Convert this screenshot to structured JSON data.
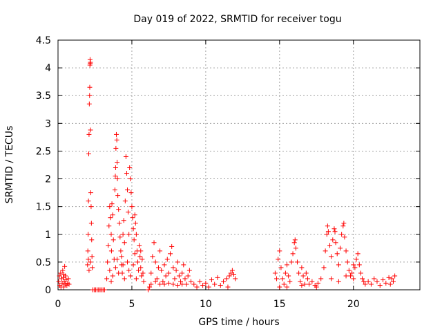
{
  "chart_data": {
    "type": "scatter",
    "title": "Day 019 of 2022, SRMTID for receiver togu",
    "xlabel": "GPS time / hours",
    "ylabel": "SRMTID / TECUs",
    "xlim": [
      0,
      24.5
    ],
    "ylim": [
      0,
      4.5
    ],
    "xticks": [
      0,
      5,
      10,
      15,
      20
    ],
    "yticks": [
      0,
      0.5,
      1,
      1.5,
      2,
      2.5,
      3,
      3.5,
      4,
      4.5
    ],
    "ytick_labels": [
      "0",
      "0.5",
      "1",
      "1.5",
      "2",
      "2.5",
      "3",
      "3.5",
      "4",
      "4.5"
    ],
    "grid": true,
    "marker": "+",
    "color": "#ff0000",
    "series": [
      {
        "name": "SRMTID",
        "points": [
          [
            0.05,
            0.15
          ],
          [
            0.1,
            0.25
          ],
          [
            0.12,
            0.08
          ],
          [
            0.18,
            0.3
          ],
          [
            0.2,
            0.05
          ],
          [
            0.25,
            0.2
          ],
          [
            0.28,
            0.12
          ],
          [
            0.32,
            0.35
          ],
          [
            0.35,
            0.22
          ],
          [
            0.38,
            0.05
          ],
          [
            0.4,
            0.28
          ],
          [
            0.42,
            0.15
          ],
          [
            0.45,
            0.42
          ],
          [
            0.48,
            0.1
          ],
          [
            0.5,
            0.25
          ],
          [
            0.55,
            0.18
          ],
          [
            0.6,
            0.08
          ],
          [
            0.65,
            0.12
          ],
          [
            0.7,
            0.2
          ],
          [
            0.75,
            0.1
          ],
          [
            2.0,
            0.45
          ],
          [
            2.02,
            0.7
          ],
          [
            2.04,
            1.0
          ],
          [
            2.06,
            1.6
          ],
          [
            2.08,
            2.45
          ],
          [
            2.1,
            2.8
          ],
          [
            2.12,
            3.35
          ],
          [
            2.14,
            3.5
          ],
          [
            2.15,
            3.65
          ],
          [
            2.16,
            4.05
          ],
          [
            2.17,
            4.15
          ],
          [
            2.18,
            4.08
          ],
          [
            2.19,
            4.1
          ],
          [
            2.2,
            2.88
          ],
          [
            2.22,
            1.75
          ],
          [
            2.24,
            1.5
          ],
          [
            2.26,
            1.2
          ],
          [
            2.28,
            0.9
          ],
          [
            2.3,
            0.6
          ],
          [
            2.32,
            0.4
          ],
          [
            2.05,
            0.55
          ],
          [
            2.1,
            0.35
          ],
          [
            2.2,
            0.5
          ],
          [
            2.35,
            0.0
          ],
          [
            2.45,
            0.0
          ],
          [
            2.55,
            0.0
          ],
          [
            2.65,
            0.0
          ],
          [
            2.75,
            0.0
          ],
          [
            2.85,
            0.0
          ],
          [
            2.95,
            0.0
          ],
          [
            3.05,
            0.0
          ],
          [
            3.15,
            0.0
          ],
          [
            3.3,
            0.2
          ],
          [
            3.35,
            0.5
          ],
          [
            3.4,
            0.8
          ],
          [
            3.45,
            1.15
          ],
          [
            3.5,
            1.5
          ],
          [
            3.55,
            1.3
          ],
          [
            3.6,
            1.0
          ],
          [
            3.62,
            0.7
          ],
          [
            3.65,
            1.55
          ],
          [
            3.7,
            1.35
          ],
          [
            3.75,
            0.9
          ],
          [
            3.8,
            0.55
          ],
          [
            3.85,
            1.8
          ],
          [
            3.88,
            2.05
          ],
          [
            3.9,
            2.2
          ],
          [
            3.92,
            2.55
          ],
          [
            3.95,
            2.8
          ],
          [
            3.98,
            2.7
          ],
          [
            4.0,
            2.3
          ],
          [
            4.02,
            2.0
          ],
          [
            4.05,
            1.7
          ],
          [
            4.1,
            1.45
          ],
          [
            4.15,
            1.2
          ],
          [
            4.2,
            0.95
          ],
          [
            4.25,
            0.7
          ],
          [
            4.3,
            0.45
          ],
          [
            4.35,
            0.3
          ],
          [
            4.4,
            1.0
          ],
          [
            4.45,
            1.25
          ],
          [
            4.5,
            0.85
          ],
          [
            4.55,
            1.6
          ],
          [
            4.6,
            2.4
          ],
          [
            4.65,
            2.1
          ],
          [
            4.7,
            1.8
          ],
          [
            4.75,
            1.4
          ],
          [
            4.8,
            1.0
          ],
          [
            4.85,
            2.2
          ],
          [
            4.9,
            2.0
          ],
          [
            4.95,
            1.75
          ],
          [
            5.0,
            1.5
          ],
          [
            5.05,
            1.3
          ],
          [
            5.1,
            1.1
          ],
          [
            5.15,
            0.9
          ],
          [
            5.2,
            1.35
          ],
          [
            5.25,
            1.2
          ],
          [
            5.3,
            1.0
          ],
          [
            5.35,
            0.7
          ],
          [
            5.4,
            0.5
          ],
          [
            5.45,
            0.35
          ],
          [
            5.5,
            0.8
          ],
          [
            5.55,
            0.6
          ],
          [
            5.6,
            0.4
          ],
          [
            5.65,
            0.25
          ],
          [
            5.7,
            0.55
          ],
          [
            5.75,
            0.3
          ],
          [
            5.8,
            0.15
          ],
          [
            3.5,
            0.35
          ],
          [
            3.7,
            0.25
          ],
          [
            3.9,
            0.4
          ],
          [
            4.1,
            0.3
          ],
          [
            4.3,
            0.6
          ],
          [
            4.5,
            0.2
          ],
          [
            4.7,
            0.5
          ],
          [
            4.9,
            0.25
          ],
          [
            5.1,
            0.45
          ],
          [
            5.3,
            0.2
          ],
          [
            3.6,
            0.15
          ],
          [
            4.0,
            0.55
          ],
          [
            4.4,
            0.45
          ],
          [
            4.8,
            0.35
          ],
          [
            5.2,
            0.65
          ],
          [
            5.6,
            0.7
          ],
          [
            6.1,
            0.0
          ],
          [
            6.2,
            0.05
          ],
          [
            6.3,
            0.3
          ],
          [
            6.4,
            0.6
          ],
          [
            6.5,
            0.85
          ],
          [
            6.6,
            0.5
          ],
          [
            6.7,
            0.2
          ],
          [
            6.8,
            0.4
          ],
          [
            6.9,
            0.7
          ],
          [
            7.0,
            0.35
          ],
          [
            7.1,
            0.15
          ],
          [
            7.2,
            0.45
          ],
          [
            7.3,
            0.25
          ],
          [
            7.4,
            0.55
          ],
          [
            7.5,
            0.3
          ],
          [
            7.6,
            0.65
          ],
          [
            7.7,
            0.78
          ],
          [
            7.8,
            0.4
          ],
          [
            7.9,
            0.2
          ],
          [
            8.0,
            0.35
          ],
          [
            8.1,
            0.5
          ],
          [
            8.2,
            0.25
          ],
          [
            8.3,
            0.15
          ],
          [
            8.4,
            0.3
          ],
          [
            8.5,
            0.45
          ],
          [
            8.6,
            0.2
          ],
          [
            8.7,
            0.1
          ],
          [
            8.8,
            0.25
          ],
          [
            8.9,
            0.35
          ],
          [
            9.0,
            0.15
          ],
          [
            6.3,
            0.1
          ],
          [
            6.6,
            0.15
          ],
          [
            6.9,
            0.1
          ],
          [
            7.2,
            0.1
          ],
          [
            7.5,
            0.12
          ],
          [
            7.8,
            0.1
          ],
          [
            8.1,
            0.08
          ],
          [
            8.4,
            0.1
          ],
          [
            9.2,
            0.1
          ],
          [
            9.4,
            0.05
          ],
          [
            9.6,
            0.15
          ],
          [
            9.8,
            0.08
          ],
          [
            10.0,
            0.12
          ],
          [
            10.2,
            0.05
          ],
          [
            10.4,
            0.18
          ],
          [
            10.6,
            0.1
          ],
          [
            10.8,
            0.22
          ],
          [
            11.0,
            0.08
          ],
          [
            11.2,
            0.15
          ],
          [
            11.4,
            0.2
          ],
          [
            11.5,
            0.05
          ],
          [
            11.6,
            0.25
          ],
          [
            11.7,
            0.3
          ],
          [
            11.8,
            0.35
          ],
          [
            11.9,
            0.28
          ],
          [
            12.0,
            0.2
          ],
          [
            14.7,
            0.3
          ],
          [
            14.8,
            0.2
          ],
          [
            14.9,
            0.55
          ],
          [
            15.0,
            0.7
          ],
          [
            15.1,
            0.4
          ],
          [
            15.2,
            0.2
          ],
          [
            15.3,
            0.1
          ],
          [
            15.4,
            0.3
          ],
          [
            15.5,
            0.45
          ],
          [
            15.6,
            0.25
          ],
          [
            15.7,
            0.15
          ],
          [
            15.8,
            0.5
          ],
          [
            15.9,
            0.65
          ],
          [
            16.0,
            0.85
          ],
          [
            16.05,
            0.9
          ],
          [
            16.1,
            0.75
          ],
          [
            16.2,
            0.5
          ],
          [
            16.3,
            0.3
          ],
          [
            16.4,
            0.15
          ],
          [
            16.5,
            0.4
          ],
          [
            16.6,
            0.25
          ],
          [
            16.7,
            0.1
          ],
          [
            16.8,
            0.3
          ],
          [
            16.9,
            0.2
          ],
          [
            17.0,
            0.1
          ],
          [
            17.2,
            0.15
          ],
          [
            17.4,
            0.08
          ],
          [
            17.6,
            0.12
          ],
          [
            17.8,
            0.2
          ],
          [
            18.0,
            0.4
          ],
          [
            18.1,
            0.7
          ],
          [
            18.2,
            1.0
          ],
          [
            18.25,
            1.15
          ],
          [
            18.3,
            1.05
          ],
          [
            18.4,
            0.8
          ],
          [
            18.5,
            0.6
          ],
          [
            18.6,
            0.9
          ],
          [
            18.7,
            1.1
          ],
          [
            18.75,
            1.05
          ],
          [
            18.8,
            0.85
          ],
          [
            18.9,
            0.65
          ],
          [
            19.0,
            0.45
          ],
          [
            19.1,
            0.75
          ],
          [
            19.2,
            1.0
          ],
          [
            19.3,
            1.15
          ],
          [
            19.35,
            1.2
          ],
          [
            19.4,
            0.95
          ],
          [
            19.5,
            0.7
          ],
          [
            19.6,
            0.5
          ],
          [
            19.7,
            0.35
          ],
          [
            19.8,
            0.25
          ],
          [
            19.9,
            0.3
          ],
          [
            20.0,
            0.2
          ],
          [
            20.1,
            0.4
          ],
          [
            20.2,
            0.55
          ],
          [
            20.3,
            0.65
          ],
          [
            20.4,
            0.45
          ],
          [
            20.5,
            0.3
          ],
          [
            20.6,
            0.2
          ],
          [
            20.7,
            0.15
          ],
          [
            20.8,
            0.1
          ],
          [
            15.0,
            0.05
          ],
          [
            15.5,
            0.05
          ],
          [
            16.5,
            0.08
          ],
          [
            17.5,
            0.05
          ],
          [
            18.5,
            0.2
          ],
          [
            19.0,
            0.15
          ],
          [
            19.5,
            0.25
          ],
          [
            20.0,
            0.45
          ],
          [
            21.0,
            0.15
          ],
          [
            21.2,
            0.1
          ],
          [
            21.4,
            0.2
          ],
          [
            21.6,
            0.15
          ],
          [
            21.8,
            0.08
          ],
          [
            22.0,
            0.18
          ],
          [
            22.2,
            0.12
          ],
          [
            22.4,
            0.22
          ],
          [
            22.5,
            0.1
          ],
          [
            22.6,
            0.2
          ],
          [
            22.7,
            0.15
          ],
          [
            22.8,
            0.25
          ]
        ]
      }
    ]
  }
}
